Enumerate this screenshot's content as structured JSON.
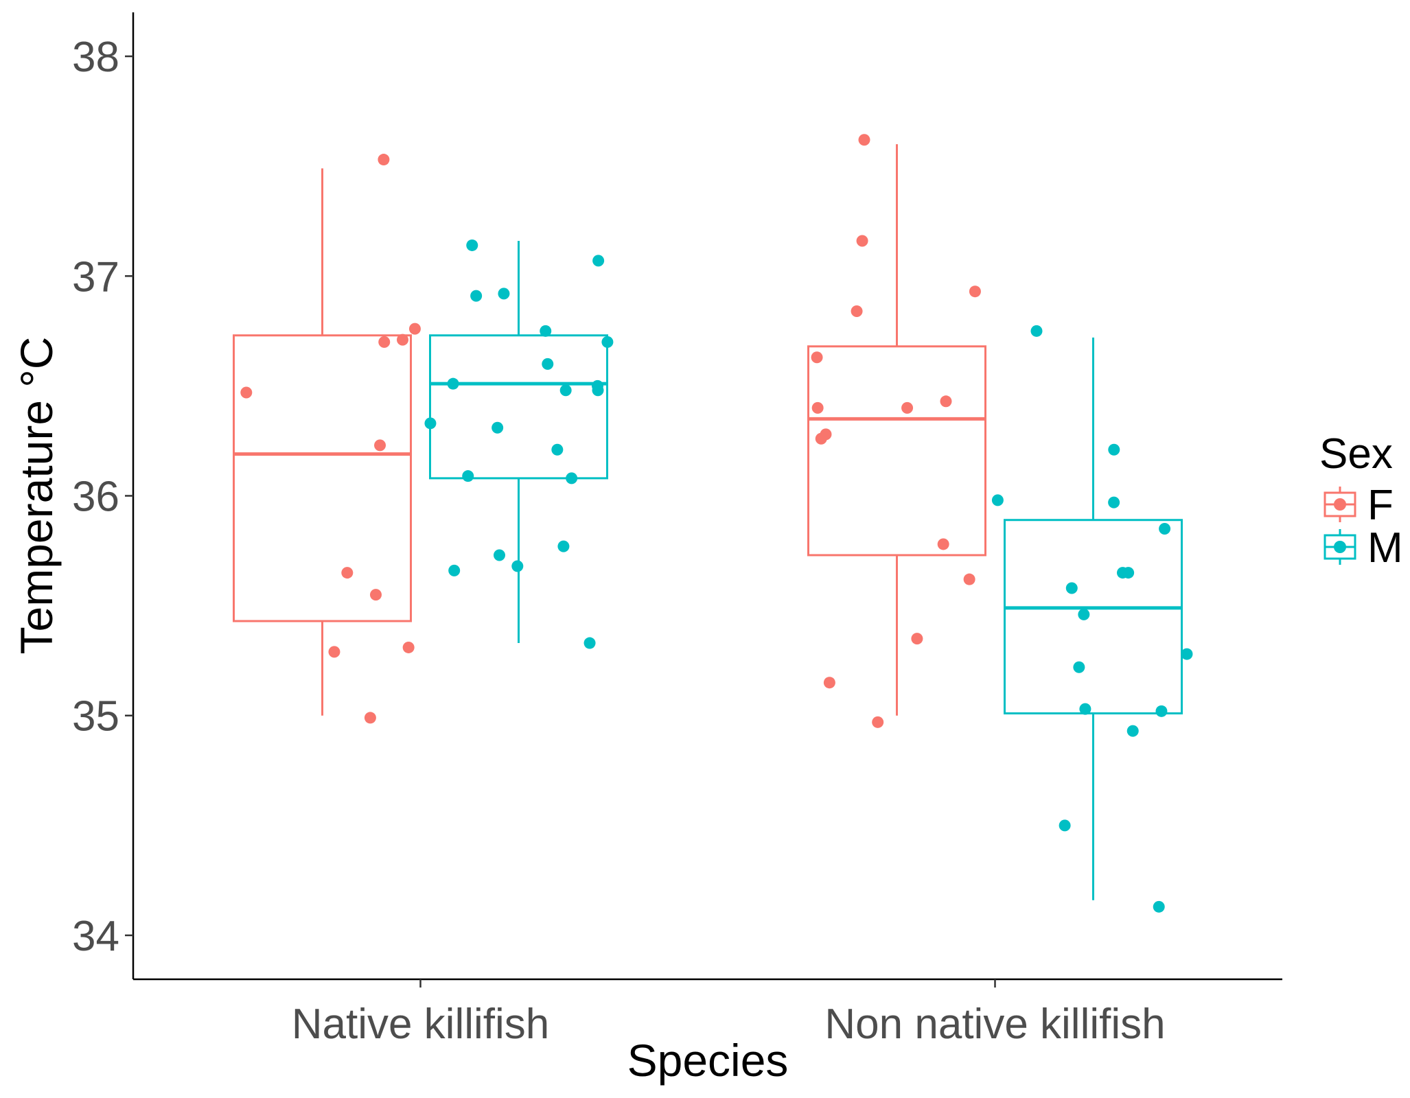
{
  "chart_data": {
    "type": "boxplot",
    "xlabel": "Species",
    "ylabel": "Temperature °C",
    "ylim": [
      33.8,
      38.2
    ],
    "yticks": [
      34,
      35,
      36,
      37,
      38
    ],
    "grid": false,
    "legend": {
      "title": "Sex",
      "position": "right"
    },
    "categories": [
      "Native killifish",
      "Non native killifish"
    ],
    "series": [
      {
        "name": "F",
        "color": "#F8766D",
        "boxes": [
          {
            "category": "Native killifish",
            "whisker_low": 35.0,
            "q1": 35.43,
            "median": 36.19,
            "q3": 36.73,
            "whisker_high": 37.49
          },
          {
            "category": "Non native killifish",
            "whisker_low": 35.0,
            "q1": 35.73,
            "median": 36.35,
            "q3": 36.68,
            "whisker_high": 37.6
          }
        ],
        "points": [
          {
            "category": "Native killifish",
            "values": [
              37.53,
              36.47,
              36.23,
              35.65,
              35.55,
              35.29,
              36.76,
              36.71,
              36.7,
              35.31,
              34.99
            ]
          },
          {
            "category": "Non native killifish",
            "values": [
              36.93,
              36.28,
              35.78,
              36.4,
              35.35,
              34.97,
              37.62,
              37.16,
              36.43,
              36.4,
              36.84,
              36.63,
              36.26,
              35.62,
              35.15
            ]
          }
        ]
      },
      {
        "name": "M",
        "color": "#00BFC4",
        "boxes": [
          {
            "category": "Native killifish",
            "whisker_low": 35.33,
            "q1": 36.08,
            "median": 36.51,
            "q3": 36.73,
            "whisker_high": 37.16
          },
          {
            "category": "Non native killifish",
            "whisker_low": 34.16,
            "q1": 35.01,
            "median": 35.49,
            "q3": 35.89,
            "whisker_high": 36.72
          }
        ],
        "points": [
          {
            "category": "Native killifish",
            "values": [
              37.14,
              36.7,
              36.51,
              36.5,
              36.33,
              36.09,
              35.68,
              35.77,
              37.07,
              36.92,
              36.91,
              36.75,
              36.6,
              36.48,
              36.48,
              36.31,
              36.21,
              36.08,
              35.73,
              35.66,
              35.33
            ]
          },
          {
            "category": "Non native killifish",
            "values": [
              36.75,
              36.21,
              35.85,
              35.58,
              35.46,
              34.93,
              34.13,
              35.98,
              35.97,
              35.65,
              35.65,
              35.28,
              35.22,
              35.02,
              35.03,
              34.5
            ]
          }
        ]
      }
    ]
  }
}
